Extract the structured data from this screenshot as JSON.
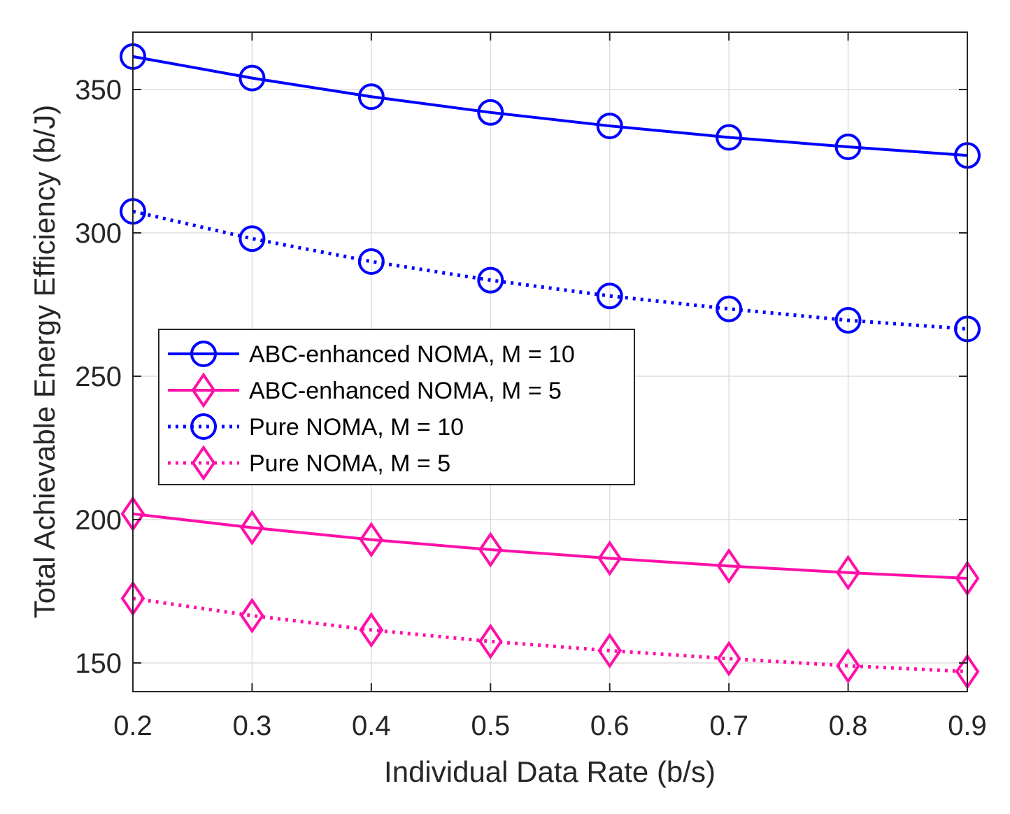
{
  "chart_data": {
    "type": "line",
    "title": "",
    "xlabel": "Individual Data Rate (b/s)",
    "ylabel": "Total Achievable Energy Efficiency (b/J)",
    "xlim": [
      0.2,
      0.9
    ],
    "ylim": [
      140,
      370
    ],
    "xticks": [
      0.2,
      0.3,
      0.4,
      0.5,
      0.6,
      0.7,
      0.8,
      0.9
    ],
    "xtick_labels": [
      "0.2",
      "0.3",
      "0.4",
      "0.5",
      "0.6",
      "0.7",
      "0.8",
      "0.9"
    ],
    "yticks": [
      150,
      200,
      250,
      300,
      350
    ],
    "ytick_labels": [
      "150",
      "200",
      "250",
      "300",
      "350"
    ],
    "grid": true,
    "legend_position": "middle-left",
    "x": [
      0.2,
      0.3,
      0.4,
      0.5,
      0.6,
      0.7,
      0.8,
      0.9
    ],
    "series": [
      {
        "name": "ABC-enhanced NOMA, M = 10",
        "color": "#0000ff",
        "line": "solid",
        "marker": "circle",
        "values": [
          361.5,
          354.0,
          347.5,
          342.0,
          337.3,
          333.3,
          330.0,
          327.0
        ]
      },
      {
        "name": "ABC-enhanced NOMA, M = 5",
        "color": "#ff10a8",
        "line": "solid",
        "marker": "diamond",
        "values": [
          202.0,
          197.2,
          193.0,
          189.5,
          186.5,
          183.8,
          181.5,
          179.5
        ]
      },
      {
        "name": "Pure NOMA, M = 10",
        "color": "#0000ff",
        "line": "dotted",
        "marker": "circle",
        "values": [
          307.5,
          298.0,
          290.0,
          283.5,
          278.0,
          273.5,
          269.5,
          266.5
        ]
      },
      {
        "name": "Pure NOMA, M = 5",
        "color": "#ff10a8",
        "line": "dotted",
        "marker": "diamond",
        "values": [
          172.5,
          166.5,
          161.5,
          157.5,
          154.3,
          151.5,
          149.0,
          147.0
        ]
      }
    ]
  }
}
